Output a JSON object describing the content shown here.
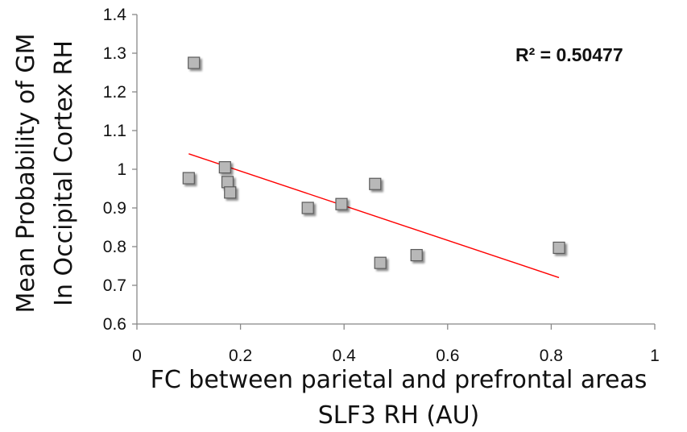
{
  "chart_data": {
    "type": "scatter",
    "xlabel_lines": [
      "FC between parietal and prefrontal areas",
      "SLF3 RH (AU)"
    ],
    "ylabel_lines": [
      "Mean Probability of GM",
      "In Occipital Cortex  RH"
    ],
    "xlim": [
      0,
      1
    ],
    "ylim": [
      0.6,
      1.4
    ],
    "x_ticks": [
      "0",
      "0.2",
      "0.4",
      "0.6",
      "0.8",
      "1"
    ],
    "y_ticks": [
      "0.6",
      "0.7",
      "0.8",
      "0.9",
      "1",
      "1.1",
      "1.2",
      "1.3",
      "1.4"
    ],
    "annotation": "R² = 0.50477",
    "series": [
      {
        "marker": "square",
        "color": "#b8b8b8",
        "x": [
          0.11,
          0.1,
          0.17,
          0.175,
          0.18,
          0.33,
          0.395,
          0.46,
          0.47,
          0.54,
          0.815
        ],
        "y": [
          1.275,
          0.977,
          1.005,
          0.967,
          0.94,
          0.9,
          0.91,
          0.962,
          0.758,
          0.778,
          0.797
        ]
      }
    ],
    "trendline": {
      "color": "#ff0000",
      "x": [
        0.1,
        0.815
      ],
      "y": [
        1.04,
        0.72
      ]
    }
  }
}
